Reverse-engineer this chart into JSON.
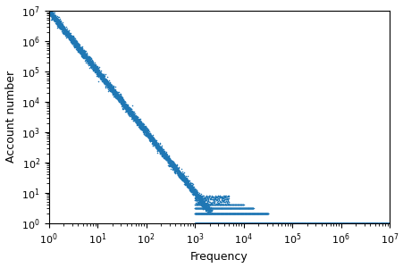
{
  "xlabel": "Frequency",
  "ylabel": "Account number",
  "dot_color": "#1f77b4",
  "dot_size": 1.2,
  "background_color": "#ffffff",
  "seed": 42,
  "n_main": 6000,
  "n_flat_1": 4000,
  "n_flat_2": 800,
  "n_flat_3": 400,
  "n_flat_4": 200,
  "n_sparse": 300
}
